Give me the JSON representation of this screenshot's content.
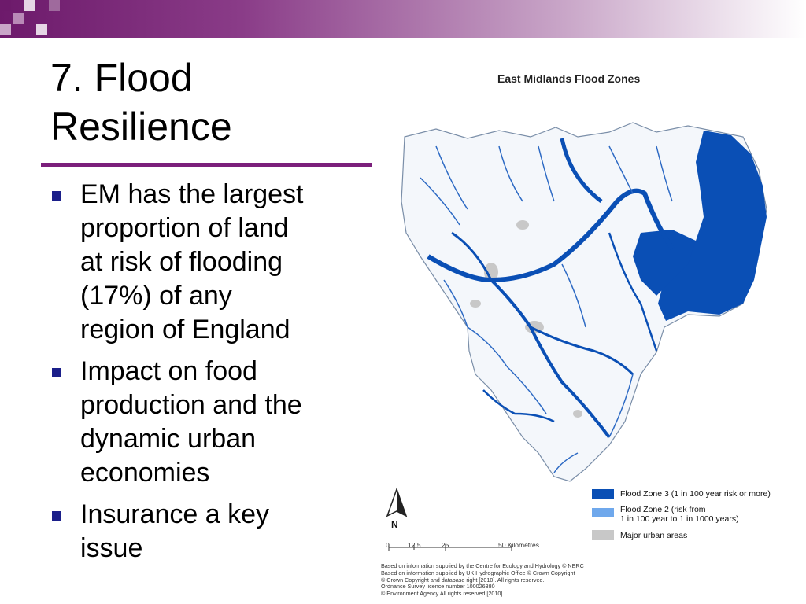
{
  "slide": {
    "title_line1": "7. Flood",
    "title_line2": "Resilience",
    "bullets": [
      {
        "lines": [
          "EM has the largest",
          "proportion of land",
          "at risk of flooding",
          "(17%) of any",
          "region of England"
        ]
      },
      {
        "lines": [
          "Impact on food",
          "production and the",
          "dynamic urban",
          "economies"
        ]
      },
      {
        "lines": [
          "Insurance a key",
          "issue"
        ]
      }
    ]
  },
  "map": {
    "title": "East Midlands Flood Zones",
    "legend": [
      {
        "label_lines": [
          "Flood Zone 3 (1 in 100 year risk or more)"
        ],
        "color": "#0a4fb5"
      },
      {
        "label_lines": [
          "Flood Zone 2 (risk from",
          "1 in 100 year to 1 in 1000 years)"
        ],
        "color": "#6fa8ec"
      },
      {
        "label_lines": [
          "Major urban areas"
        ],
        "color": "#c8c8c8"
      }
    ],
    "north_label": "N",
    "scale_ticks": [
      "0",
      "12.5",
      "25",
      "50 Kilometres"
    ],
    "credits": [
      "Based on information supplied by the Centre for Ecology and Hydrology © NERC",
      "Based on information supplied by UK Hydrographic Office © Crown Copyright",
      "© Crown Copyright and database right [2010]. All rights reserved.",
      "Ordnance Survey licence number 100026380",
      "© Environment Agency All rights reserved [2010]"
    ]
  },
  "colors": {
    "accent": "#7b1f7b",
    "bullet": "#1b1f8a",
    "flood_zone_3": "#0a4fb5",
    "flood_zone_2": "#6fa8ec",
    "urban": "#c8c8c8"
  }
}
